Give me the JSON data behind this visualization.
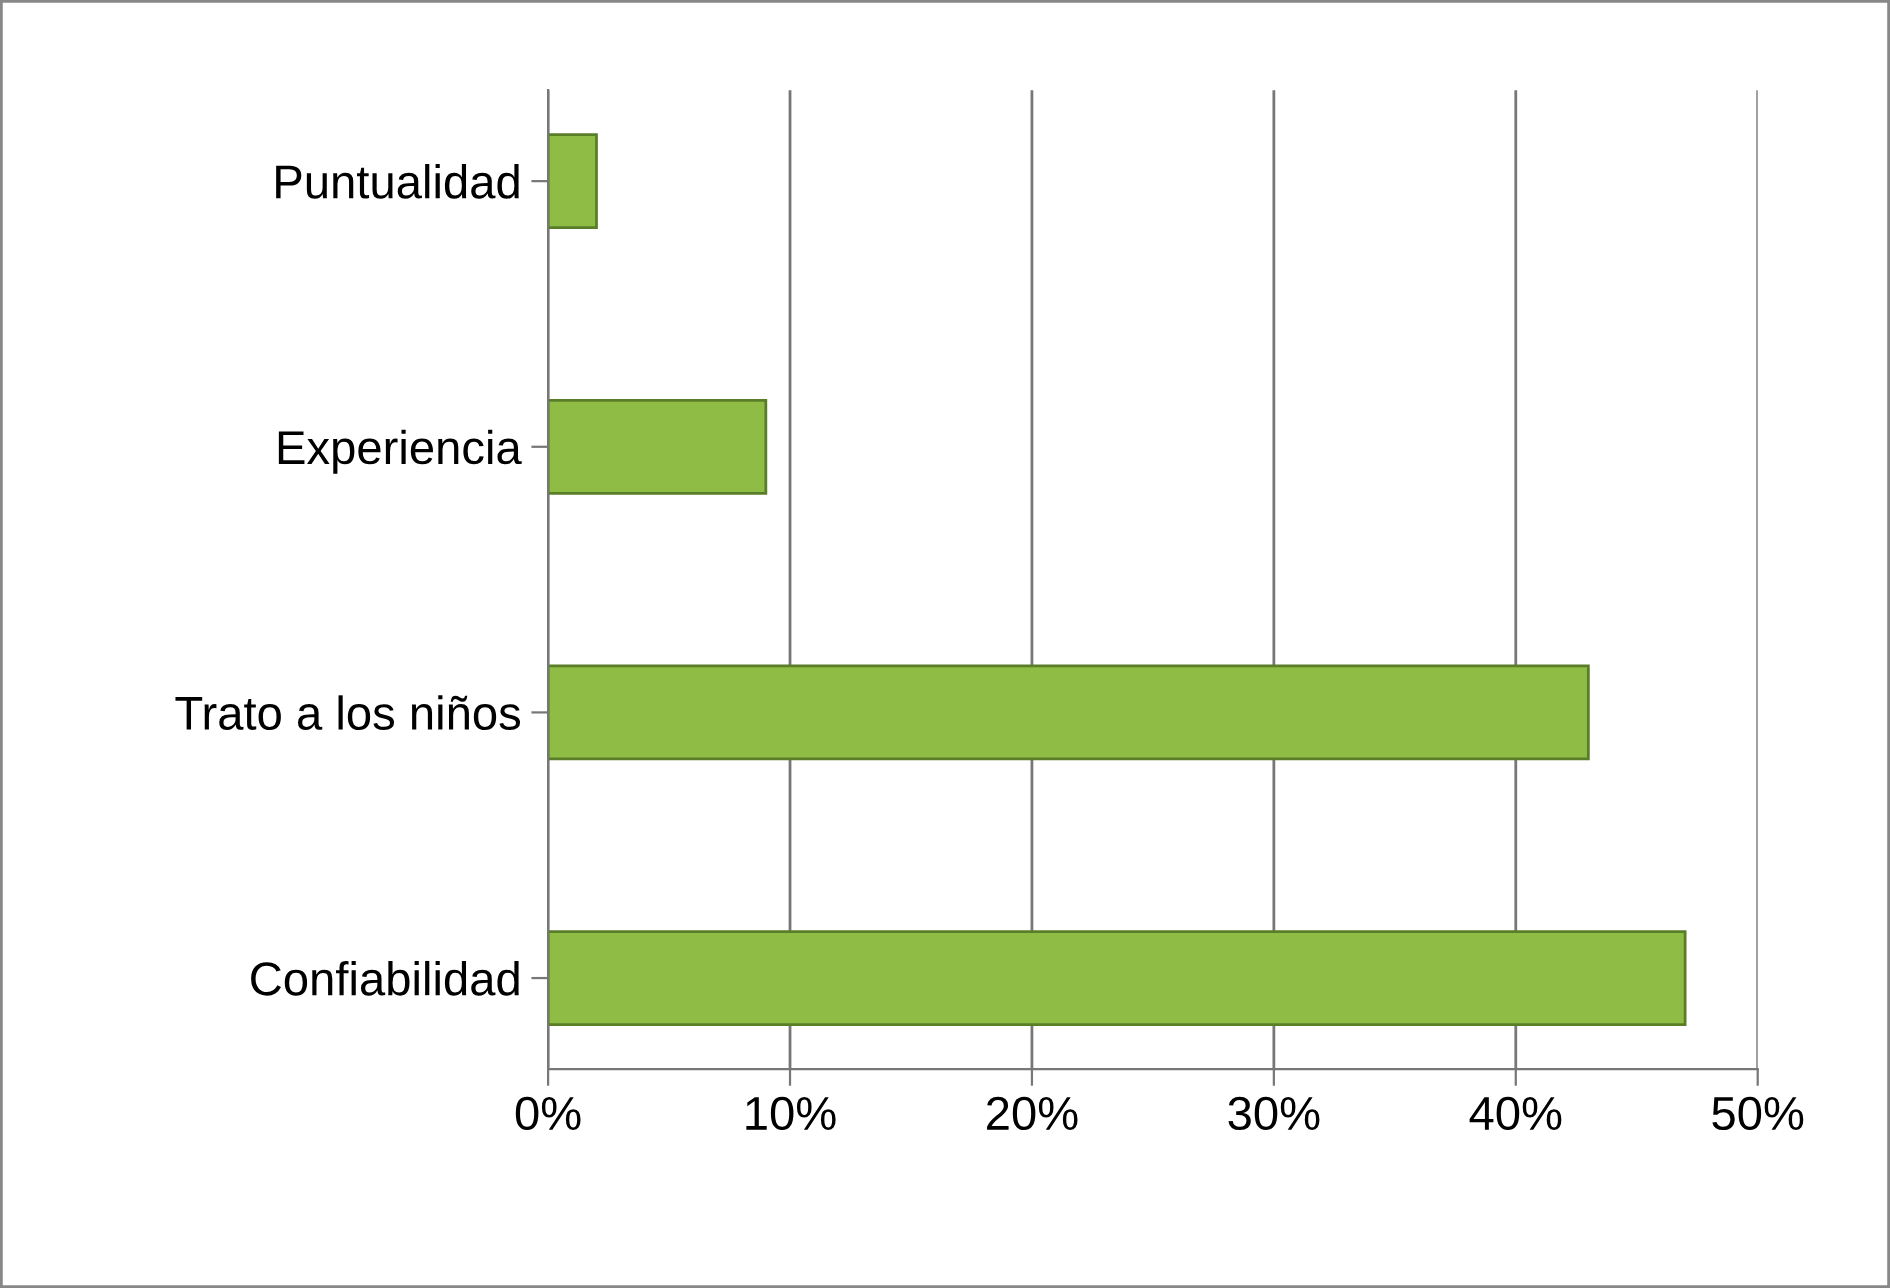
{
  "chart_data": {
    "type": "bar",
    "orientation": "horizontal",
    "categories": [
      "Puntualidad",
      "Experiencia",
      "Trato a los niños",
      "Confiabilidad"
    ],
    "values": [
      2,
      9,
      43,
      47
    ],
    "color": "#8fbc45",
    "xlim": [
      0,
      50
    ],
    "xticks": [
      {
        "value": 0,
        "label": "0%"
      },
      {
        "value": 10,
        "label": "10%"
      },
      {
        "value": 20,
        "label": "20%"
      },
      {
        "value": 30,
        "label": "30%"
      },
      {
        "value": 40,
        "label": "40%"
      },
      {
        "value": 50,
        "label": "50%"
      }
    ],
    "grid": "x",
    "legend": false
  }
}
